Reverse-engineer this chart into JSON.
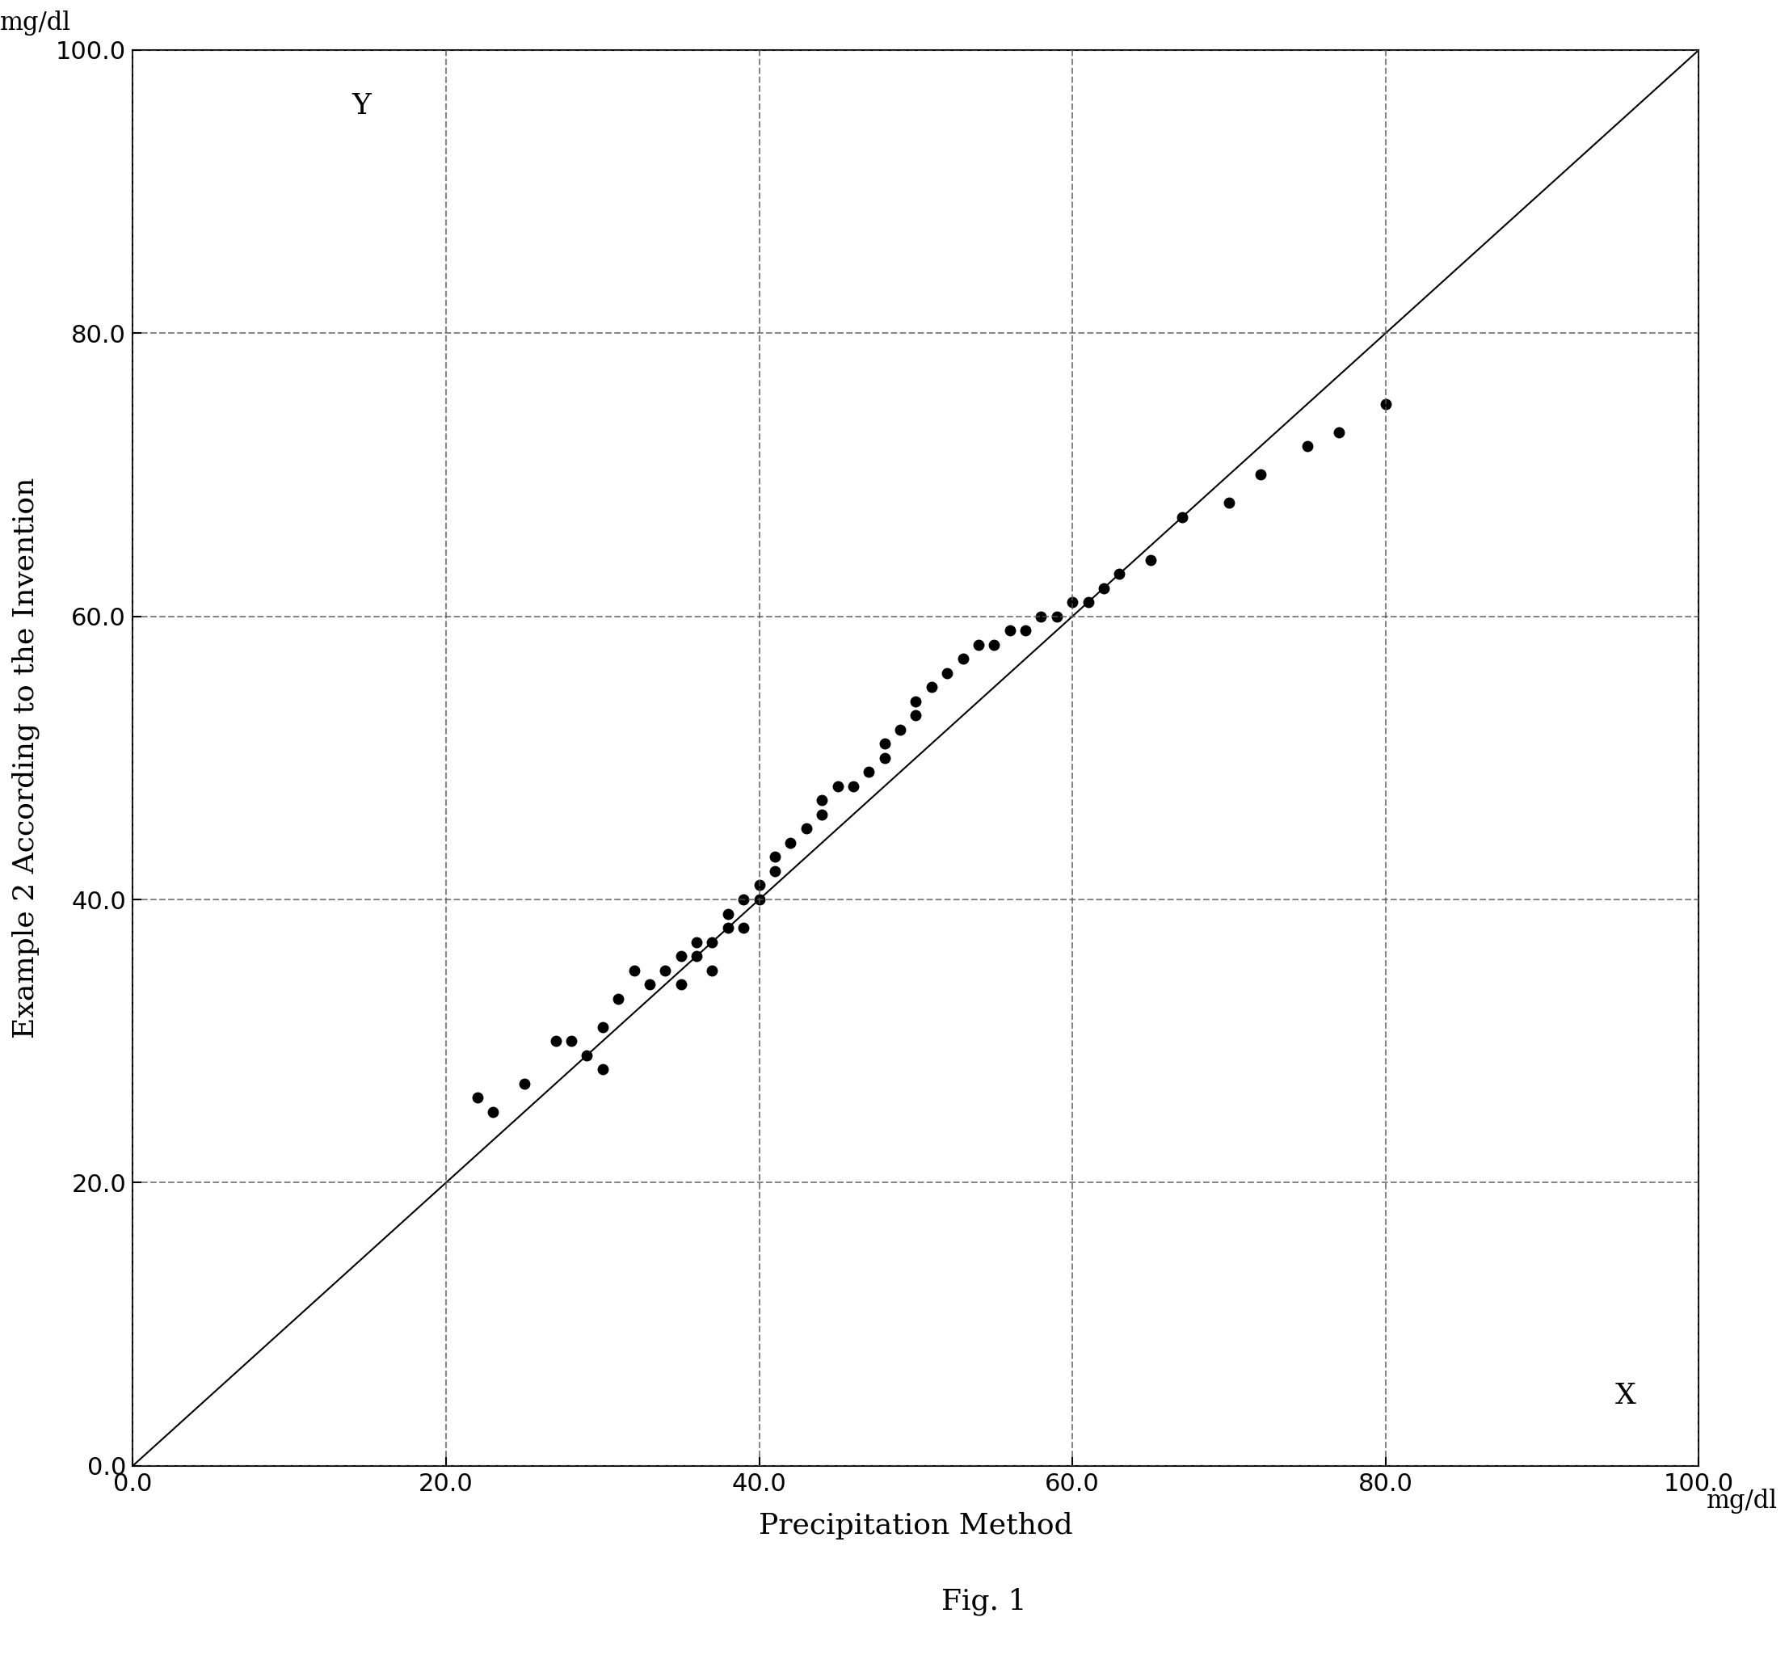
{
  "x_data": [
    22,
    23,
    25,
    27,
    28,
    29,
    30,
    30,
    31,
    32,
    33,
    34,
    35,
    35,
    36,
    36,
    37,
    37,
    38,
    38,
    39,
    39,
    40,
    40,
    41,
    41,
    42,
    43,
    44,
    44,
    45,
    46,
    47,
    48,
    48,
    49,
    50,
    50,
    51,
    52,
    53,
    54,
    55,
    56,
    57,
    58,
    59,
    60,
    61,
    62,
    63,
    65,
    67,
    70,
    72,
    75,
    77,
    80
  ],
  "y_data": [
    26,
    25,
    27,
    30,
    30,
    29,
    31,
    28,
    33,
    35,
    34,
    35,
    36,
    34,
    36,
    37,
    37,
    35,
    38,
    39,
    40,
    38,
    41,
    40,
    42,
    43,
    44,
    45,
    46,
    47,
    48,
    48,
    49,
    50,
    51,
    52,
    53,
    54,
    55,
    56,
    57,
    58,
    58,
    59,
    59,
    60,
    60,
    61,
    61,
    62,
    63,
    64,
    67,
    68,
    70,
    72,
    73,
    75
  ],
  "line_x": [
    0,
    100
  ],
  "line_y": [
    0,
    100
  ],
  "xlim": [
    0.0,
    100.0
  ],
  "ylim": [
    0.0,
    100.0
  ],
  "xticks": [
    0.0,
    20.0,
    40.0,
    60.0,
    80.0,
    100.0
  ],
  "yticks": [
    0.0,
    20.0,
    40.0,
    60.0,
    80.0,
    100.0
  ],
  "xlabel": "Precipitation Method",
  "ylabel": "Example 2 According to the Invention",
  "x_unit_label": "mg/dl",
  "y_unit_label": "mg/dl",
  "x_label_inside": "X",
  "y_label_inside": "Y",
  "fig_caption": "Fig. 1",
  "marker_color": "#000000",
  "marker_size": 10,
  "line_color": "#000000",
  "grid_color": "#555555",
  "grid_linestyle": "--",
  "grid_linewidth": 1.5,
  "background_color": "#ffffff",
  "font_size_ticks": 22,
  "font_size_labels": 26,
  "font_size_caption": 26,
  "font_size_units": 22,
  "font_size_inside_labels": 26
}
